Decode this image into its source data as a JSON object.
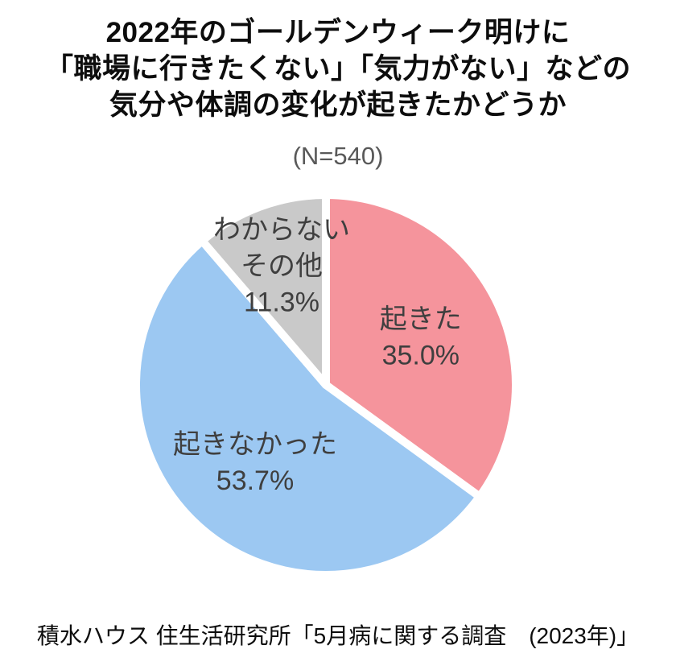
{
  "page": {
    "background_color": "#ffffff"
  },
  "title": {
    "lines": [
      "2022年のゴールデンウィーク明けに",
      "「職場に行きたくない」「気力がない」などの",
      "気分や体調の変化が起きたかどうか"
    ],
    "color": "#0d0d0d"
  },
  "sample_size_label": "(N=540)",
  "source_text": "積水ハウス 住生活研究所「5月病に関する調査　(2023年)」",
  "chart_data": {
    "type": "pie",
    "title": "2022年のゴールデンウィーク明けに「職場に行きたくない」「気力がない」などの気分や体調の変化が起きたかどうか",
    "sample_size": 540,
    "start_angle_deg": 0,
    "direction": "clockwise",
    "slice_gap_color": "#ffffff",
    "label_color": "#3f3f3f",
    "legend": "none",
    "slices": [
      {
        "name": "起きた",
        "value": 35.0,
        "percent_label": "35.0%",
        "color": "#F5949C",
        "label_lines": [
          "起きた",
          "35.0%"
        ]
      },
      {
        "name": "起きなかった",
        "value": 53.7,
        "percent_label": "53.7%",
        "color": "#9CC8F2",
        "label_lines": [
          "起きなかった",
          "53.7%"
        ]
      },
      {
        "name": "わからない・その他",
        "value": 11.3,
        "percent_label": "11.3%",
        "color": "#C9C9C9",
        "label_lines": [
          "わからない",
          "その他",
          "11.3%"
        ]
      }
    ]
  }
}
